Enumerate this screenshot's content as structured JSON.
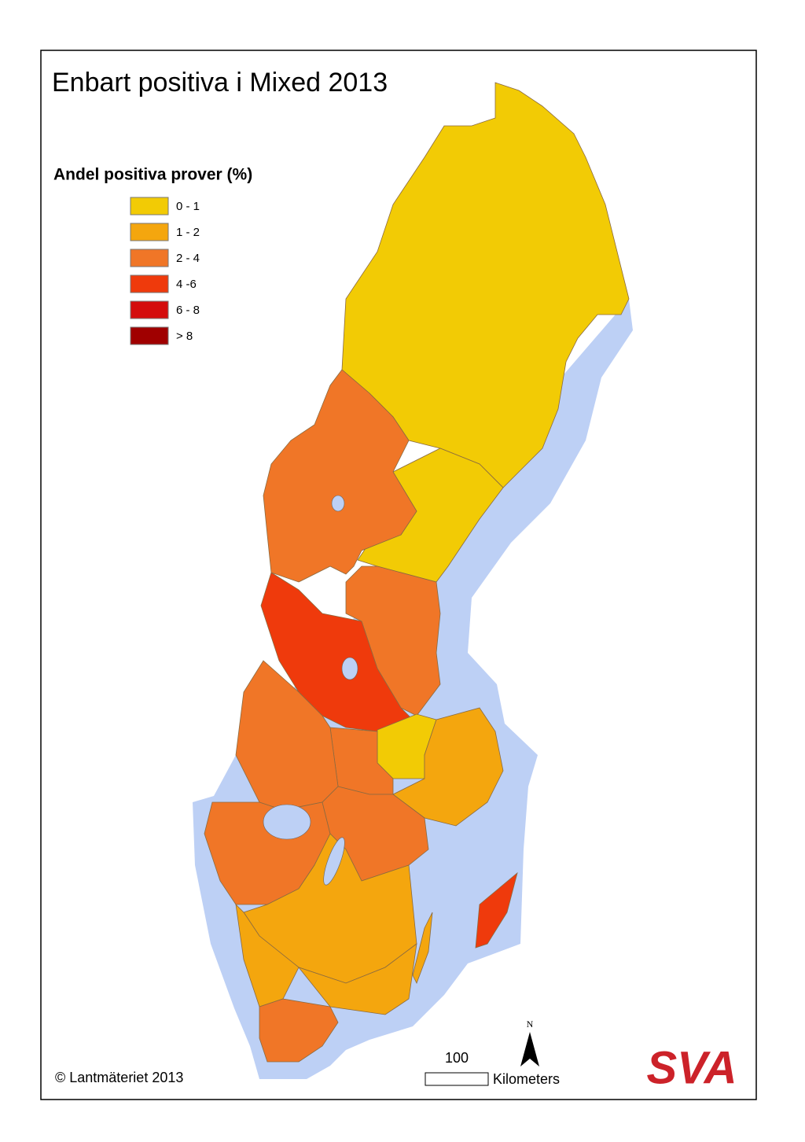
{
  "title": "Enbart positiva i Mixed 2013",
  "legend": {
    "title": "Andel positiva prover (%)",
    "items": [
      {
        "label": "0 - 1",
        "color": "#f2cb05"
      },
      {
        "label": "1 - 2",
        "color": "#f4a60e"
      },
      {
        "label": "2 - 4",
        "color": "#f07627"
      },
      {
        "label": "4 -6",
        "color": "#ef3a0c"
      },
      {
        "label": "6 - 8",
        "color": "#d40d0d"
      },
      {
        "label": "> 8",
        "color": "#a00000"
      }
    ]
  },
  "copyright": "© Lantmäteriet 2013",
  "scale_bar": {
    "value_label": "100",
    "unit": "Kilometers"
  },
  "north_arrow": "N",
  "logo": "SVA"
}
